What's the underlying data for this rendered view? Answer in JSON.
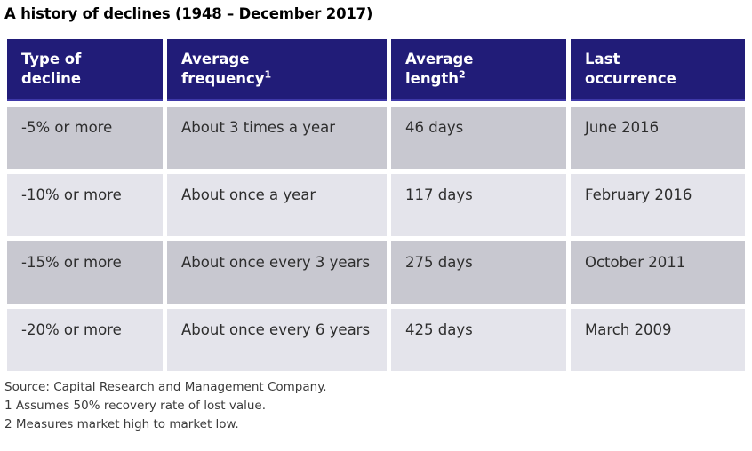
{
  "title": "A history of declines (1948 – December 2017)",
  "chart_data": {
    "type": "table",
    "title": "A history of declines (1948 – December 2017)",
    "columns": [
      "Type of decline",
      "Average frequency¹",
      "Average length²",
      "Last occurrence"
    ],
    "headers": [
      {
        "line1": "Type of",
        "line2": "decline",
        "sup": ""
      },
      {
        "line1": "Average",
        "line2": "frequency",
        "sup": "1"
      },
      {
        "line1": "Average",
        "line2": "length",
        "sup": "2"
      },
      {
        "line1": "Last",
        "line2": "occurrence",
        "sup": ""
      }
    ],
    "rows": [
      [
        "-5% or more",
        "About 3 times a year",
        "46 days",
        "June 2016"
      ],
      [
        "-10% or more",
        "About once a year",
        "117 days",
        "February 2016"
      ],
      [
        "-15% or more",
        "About once every 3 years",
        "275 days",
        "October 2011"
      ],
      [
        "-20% or more",
        "About once every 6 years",
        "425 days",
        "March 2009"
      ]
    ],
    "notes": [
      "Source: Capital Research and Management Company.",
      "1 Assumes 50% recovery rate of lost value.",
      "2 Measures market high to market low."
    ]
  },
  "colors": {
    "header_bg": "#211c78",
    "header_border_bottom": "#3e38a8",
    "header_text": "#ffffff",
    "row_dark": "#c8c8d0",
    "row_light": "#e4e4eb",
    "body_text": "#2d2d2d",
    "title_text": "#000000",
    "footnote_text": "#3b3b3b"
  }
}
